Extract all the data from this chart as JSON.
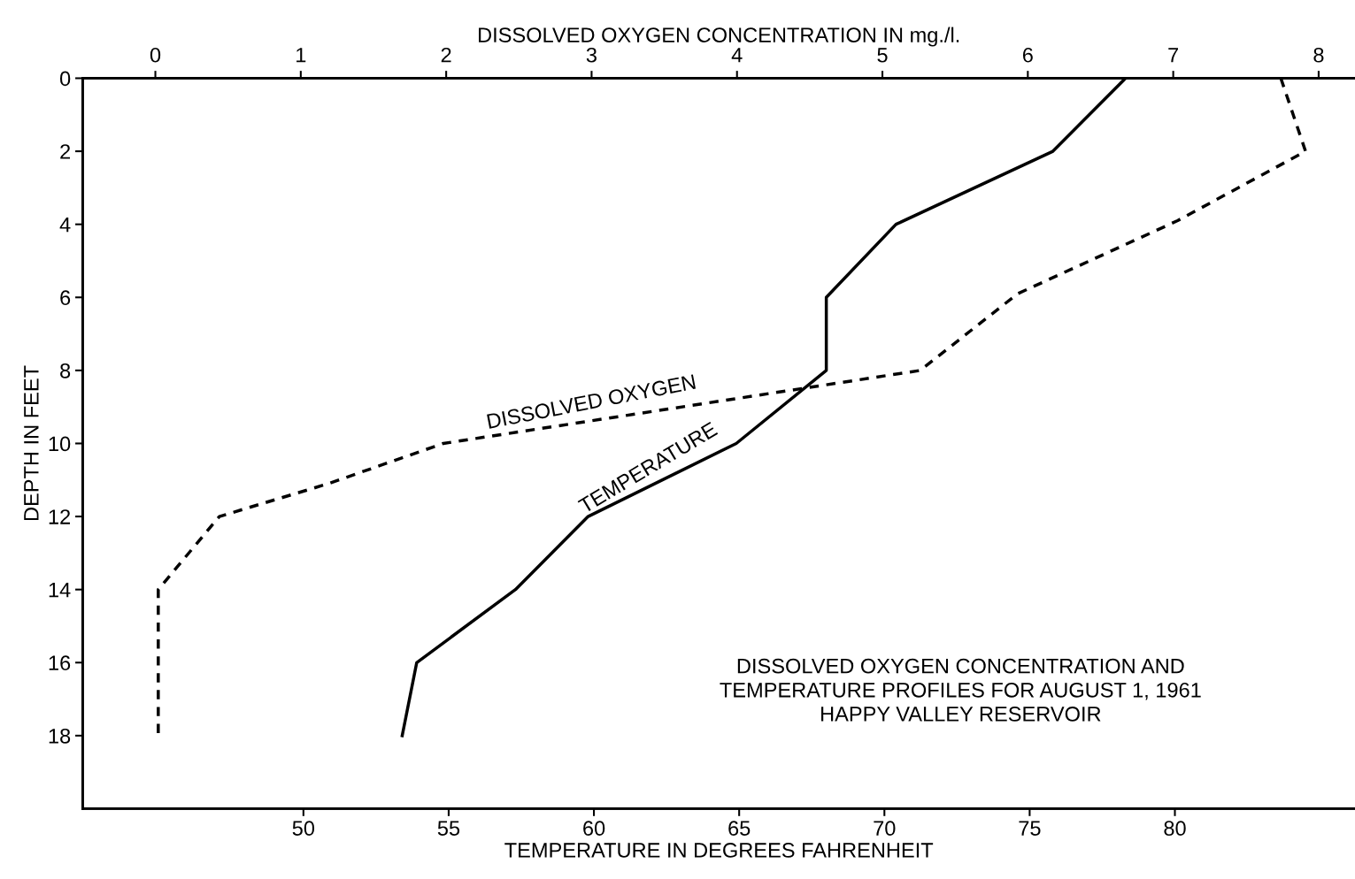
{
  "chart_data": {
    "type": "line",
    "xlabel": "TEMPERATURE IN DEGREES FAHRENHEIT",
    "x2label": "DISSOLVED OXYGEN CONCENTRATION IN mg./l.",
    "ylabel": "DEPTH IN FEET",
    "xlim": [
      42.4,
      86.2
    ],
    "xticks": [
      50,
      55,
      60,
      65,
      70,
      75,
      80
    ],
    "x2lim": [
      -0.5,
      8.25
    ],
    "x2ticks": [
      0,
      1,
      2,
      3,
      4,
      5,
      6,
      7,
      8
    ],
    "ylim": [
      20,
      0
    ],
    "yticks": [
      0,
      2,
      4,
      6,
      8,
      10,
      12,
      14,
      16,
      18
    ],
    "grid": false,
    "legend": false,
    "marker": "none",
    "series": [
      {
        "color": "#000000",
        "line_style": "solid",
        "x": [
          78.3,
          75.8,
          70.4,
          68.0,
          68.0,
          64.9,
          59.8,
          57.3,
          53.9,
          53.4
        ],
        "values": [
          0,
          2,
          4,
          6,
          8,
          10,
          12,
          14,
          16,
          18
        ]
      },
      {
        "color": "#000000",
        "line_style": "dashed",
        "axis": "x2",
        "x": [
          7.74,
          7.91,
          7.03,
          5.93,
          5.26,
          1.98,
          1.19,
          0.44,
          0.02,
          0.02
        ],
        "values": [
          0,
          2,
          3.9,
          5.9,
          8,
          10,
          11.1,
          12,
          14,
          18
        ]
      }
    ],
    "annotations": [
      "DISSOLVED OXYGEN",
      "TEMPERATURE",
      "DISSOLVED OXYGEN CONCENTRATION AND\nTEMPERATURE PROFILES FOR AUGUST 1, 1961\nHAPPY VALLEY RESERVOIR"
    ]
  }
}
